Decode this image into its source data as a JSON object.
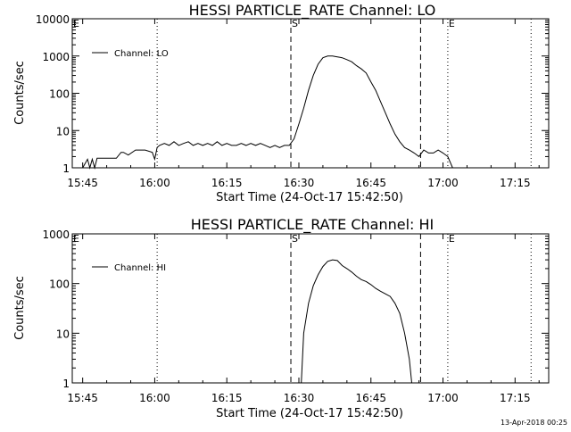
{
  "footer": {
    "timestamp": "13-Apr-2018 00:25"
  },
  "chart_data": [
    {
      "type": "line",
      "title": "HESSI PARTICLE_RATE Channel: LO",
      "xlabel": "Start Time (24-Oct-17 15:42:50)",
      "ylabel": "Counts/sec",
      "yscale": "log",
      "ylim": [
        1,
        10000
      ],
      "y_tick_labels": [
        "1",
        "10",
        "100",
        "1000",
        "10000"
      ],
      "xlim": [
        "15:42:50",
        "17:22:00"
      ],
      "x_tick_labels": [
        "15:45",
        "16:00",
        "16:15",
        "16:30",
        "16:45",
        "17:00",
        "17:15"
      ],
      "legend": {
        "label": "Channel: LO",
        "position": "top-left"
      },
      "markers": [
        {
          "label": "E",
          "time": "15:42:50",
          "style": "dotted"
        },
        {
          "label": "",
          "time": "16:00:30",
          "style": "dotted"
        },
        {
          "label": "S",
          "time": "16:28:20",
          "style": "dashed"
        },
        {
          "label": "",
          "time": "16:55:20",
          "style": "dashed"
        },
        {
          "label": "E",
          "time": "17:01:00",
          "style": "dotted"
        },
        {
          "label": "",
          "time": "17:18:20",
          "style": "dotted"
        }
      ],
      "series": [
        {
          "x": [
            "15:45:00",
            "15:46:00",
            "15:46:30",
            "15:47:00",
            "15:47:30",
            "15:48:00",
            "15:50:00",
            "15:52:00",
            "15:53:00",
            "15:53:30",
            "15:54:30",
            "15:56:00",
            "15:58:00",
            "15:59:30",
            "16:00:00",
            "16:00:30",
            "16:01:00",
            "16:02:00",
            "16:03:00",
            "16:04:00",
            "16:05:00",
            "16:06:00",
            "16:07:00",
            "16:08:00",
            "16:09:00",
            "16:10:00",
            "16:11:00",
            "16:12:00",
            "16:13:00",
            "16:14:00",
            "16:15:00",
            "16:16:00",
            "16:17:00",
            "16:18:00",
            "16:19:00",
            "16:20:00",
            "16:21:00",
            "16:22:00",
            "16:23:00",
            "16:24:00",
            "16:25:00",
            "16:26:00",
            "16:27:00",
            "16:28:00",
            "16:29:00",
            "16:30:00",
            "16:31:00",
            "16:32:00",
            "16:33:00",
            "16:34:00",
            "16:35:00",
            "16:36:00",
            "16:37:00",
            "16:38:00",
            "16:39:00",
            "16:40:00",
            "16:41:00",
            "16:42:00",
            "16:43:00",
            "16:44:00",
            "16:45:00",
            "16:46:00",
            "16:47:00",
            "16:48:00",
            "16:49:00",
            "16:50:00",
            "16:51:00",
            "16:52:00",
            "16:53:00",
            "16:54:00",
            "16:55:00",
            "16:56:00",
            "16:57:00",
            "16:58:00",
            "16:59:00",
            "17:00:00",
            "17:01:00",
            "17:02:00",
            "17:03:00",
            "17:04:00",
            "17:05:00",
            "17:06:00",
            "17:07:00"
          ],
          "y": [
            1,
            1.7,
            1,
            1.7,
            1,
            1.8,
            1.8,
            1.8,
            2.6,
            2.6,
            2.2,
            3,
            3,
            2.6,
            1.7,
            3.5,
            4,
            4.5,
            4,
            5,
            4,
            4.5,
            5,
            4,
            4.5,
            4,
            4.5,
            4,
            5,
            4,
            4.5,
            4,
            4,
            4.5,
            4,
            4.5,
            4,
            4.5,
            4,
            3.5,
            4,
            3.5,
            4,
            4,
            6,
            15,
            40,
            120,
            300,
            600,
            900,
            1000,
            1000,
            950,
            900,
            800,
            700,
            550,
            450,
            350,
            200,
            120,
            60,
            30,
            15,
            8,
            5,
            3.5,
            3,
            2.5,
            2,
            3,
            2.5,
            2.5,
            3,
            2.5,
            2,
            1,
            1,
            1,
            1,
            1,
            1
          ]
        }
      ]
    },
    {
      "type": "line",
      "title": "HESSI PARTICLE_RATE Channel: HI",
      "xlabel": "Start Time (24-Oct-17 15:42:50)",
      "ylabel": "Counts/sec",
      "yscale": "log",
      "ylim": [
        1,
        1000
      ],
      "y_tick_labels": [
        "1",
        "10",
        "100",
        "1000"
      ],
      "xlim": [
        "15:42:50",
        "17:22:00"
      ],
      "x_tick_labels": [
        "15:45",
        "16:00",
        "16:15",
        "16:30",
        "16:45",
        "17:00",
        "17:15"
      ],
      "legend": {
        "label": "Channel: HI",
        "position": "top-left"
      },
      "markers": [
        {
          "label": "E",
          "time": "15:42:50",
          "style": "dotted"
        },
        {
          "label": "",
          "time": "16:00:30",
          "style": "dotted"
        },
        {
          "label": "S",
          "time": "16:28:20",
          "style": "dashed"
        },
        {
          "label": "",
          "time": "16:55:20",
          "style": "dashed"
        },
        {
          "label": "E",
          "time": "17:01:00",
          "style": "dotted"
        },
        {
          "label": "",
          "time": "17:18:20",
          "style": "dotted"
        }
      ],
      "series": [
        {
          "x": [
            "16:30:30",
            "16:31:00",
            "16:32:00",
            "16:33:00",
            "16:34:00",
            "16:35:00",
            "16:36:00",
            "16:37:00",
            "16:38:00",
            "16:39:00",
            "16:40:00",
            "16:41:00",
            "16:42:00",
            "16:43:00",
            "16:44:00",
            "16:45:00",
            "16:46:00",
            "16:47:00",
            "16:48:00",
            "16:49:00",
            "16:50:00",
            "16:51:00",
            "16:52:00",
            "16:53:00",
            "16:53:30"
          ],
          "y": [
            1,
            10,
            40,
            90,
            150,
            220,
            280,
            300,
            290,
            230,
            200,
            170,
            140,
            120,
            110,
            95,
            80,
            70,
            62,
            55,
            40,
            25,
            10,
            3,
            1
          ]
        }
      ]
    }
  ]
}
